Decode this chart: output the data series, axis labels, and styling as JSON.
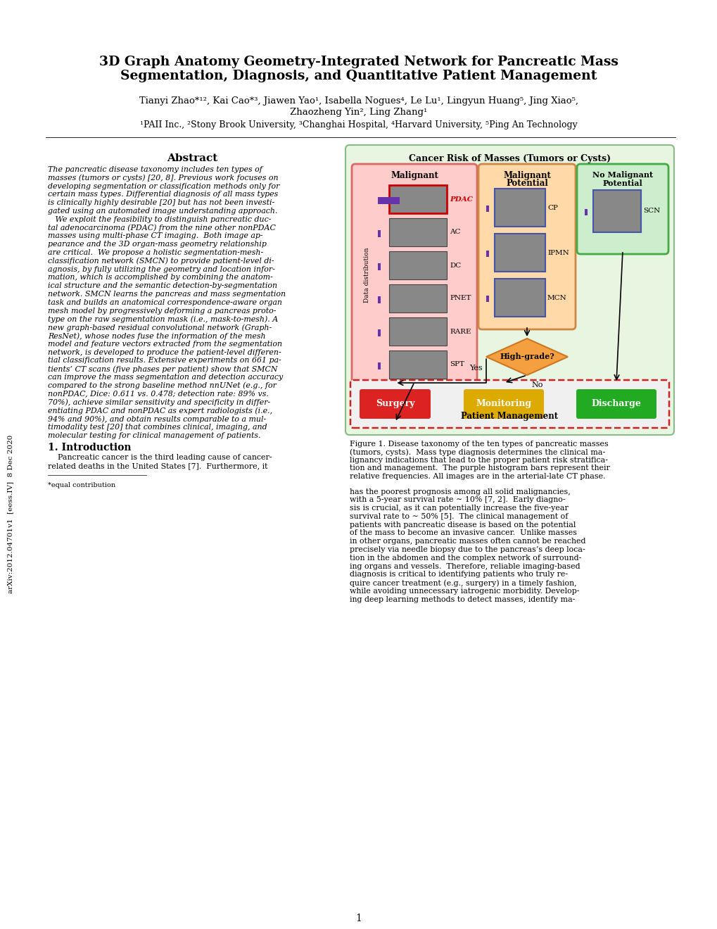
{
  "title_line1": "3D Graph Anatomy Geometry-Integrated Network for Pancreatic Mass",
  "title_line2": "Segmentation, Diagnosis, and Quantitative Patient Management",
  "authors_line1": "Tianyi Zhao*¹², Kai Cao*³, Jiawen Yao¹, Isabella Nogues⁴, Le Lu¹, Lingyun Huang⁵, Jing Xiao⁵,",
  "authors_line2": "Zhaozheng Yin², Ling Zhang¹",
  "affiliations": "¹PAII Inc., ²Stony Brook University, ³Changhai Hospital, ⁴Harvard University, ⁵Ping An Technology",
  "arxiv_label": "arXiv:2012.04701v1  [eess.IV]  8 Dec 2020",
  "abstract_title": "Abstract",
  "abstract_text_lines": [
    "The pancreatic disease taxonomy includes ten types of",
    "masses (tumors or cysts) [20, 8]. Previous work focuses on",
    "developing segmentation or classification methods only for",
    "certain mass types. Differential diagnosis of all mass types",
    "is clinically highly desirable [20] but has not been investi-",
    "gated using an automated image understanding approach.",
    "   We exploit the feasibility to distinguish pancreatic duc-",
    "tal adenocarcinoma (PDAC) from the nine other nonPDAC",
    "masses using multi-phase CT imaging.  Both image ap-",
    "pearance and the 3D organ-mass geometry relationship",
    "are critical.  We propose a holistic segmentation-mesh-",
    "classification network (SMCN) to provide patient-level di-",
    "agnosis, by fully utilizing the geometry and location infor-",
    "mation, which is accomplished by combining the anatom-",
    "ical structure and the semantic detection-by-segmentation",
    "network. SMCN learns the pancreas and mass segmentation",
    "task and builds an anatomical correspondence-aware organ",
    "mesh model by progressively deforming a pancreas proto-",
    "type on the raw segmentation mask (i.e., mask-to-mesh). A",
    "new graph-based residual convolutional network (Graph-",
    "ResNet), whose nodes fuse the information of the mesh",
    "model and feature vectors extracted from the segmentation",
    "network, is developed to produce the patient-level differen-",
    "tial classification results. Extensive experiments on 661 pa-",
    "tients’ CT scans (five phases per patient) show that SMCN",
    "can improve the mass segmentation and detection accuracy",
    "compared to the strong baseline method nnUNet (e.g., for",
    "nonPDAC, Dice: 0.611 vs. 0.478; detection rate: 89% vs.",
    "70%), achieve similar sensitivity and specificity in differ-",
    "entiating PDAC and nonPDAC as expert radiologists (i.e.,",
    "94% and 90%), and obtain results comparable to a mul-",
    "timodality test [20] that combines clinical, imaging, and",
    "molecular testing for clinical management of patients."
  ],
  "intro_title": "1. Introduction",
  "intro_text_lines": [
    "    Pancreatic cancer is the third leading cause of cancer-",
    "related deaths in the United States [7].  Furthermore, it"
  ],
  "footnote": "*equal contribution",
  "right_col_text_lines": [
    "has the poorest prognosis among all solid malignancies,",
    "with a 5-year survival rate ∼ 10% [7, 2].  Early diagno-",
    "sis is crucial, as it can potentially increase the five-year",
    "survival rate to ∼ 50% [5].  The clinical management of",
    "patients with pancreatic disease is based on the potential",
    "of the mass to become an invasive cancer.  Unlike masses",
    "in other organs, pancreatic masses often cannot be reached",
    "precisely via needle biopsy due to the pancreas’s deep loca-",
    "tion in the abdomen and the complex network of surround-",
    "ing organs and vessels.  Therefore, reliable imaging-based",
    "diagnosis is critical to identifying patients who truly re-",
    "quire cancer treatment (e.g., surgery) in a timely fashion,",
    "while avoiding unnecessary iatrogenic morbidity. Develop-",
    "ing deep learning methods to detect masses, identify ma-"
  ],
  "fig_caption_lines": [
    "Figure 1. Disease taxonomy of the ten types of pancreatic masses",
    "(tumors, cysts).  Mass type diagnosis determines the clinical ma-",
    "lignancy indications that lead to the proper patient risk stratifica-",
    "tion and management.  The purple histogram bars represent their",
    "relative frequencies. All images are in the arterial-late CT phase."
  ],
  "page_num": "1",
  "background_color": "#ffffff",
  "cancer_risk_bg": "#e8f5e0",
  "cancer_risk_border": "#88bb88",
  "malignant_bg": "#ffcccc",
  "malignant_border": "#dd6666",
  "malignant_potential_bg": "#ffd9a8",
  "malignant_potential_border": "#cc8844",
  "no_malignant_bg": "#cceecc",
  "no_malignant_border": "#44aa44",
  "surgery_color": "#dd2222",
  "monitoring_color": "#ddaa00",
  "discharge_color": "#22aa22",
  "diamond_color": "#f5a040",
  "diamond_border": "#cc7722",
  "bar_color": "#6633aa",
  "img_color": "#888888",
  "img_border": "#444444",
  "blue_border": "#4455aa",
  "pdac_color": "#cc0000",
  "pm_bg": "#f0f0f0",
  "pm_border": "#cc2222"
}
